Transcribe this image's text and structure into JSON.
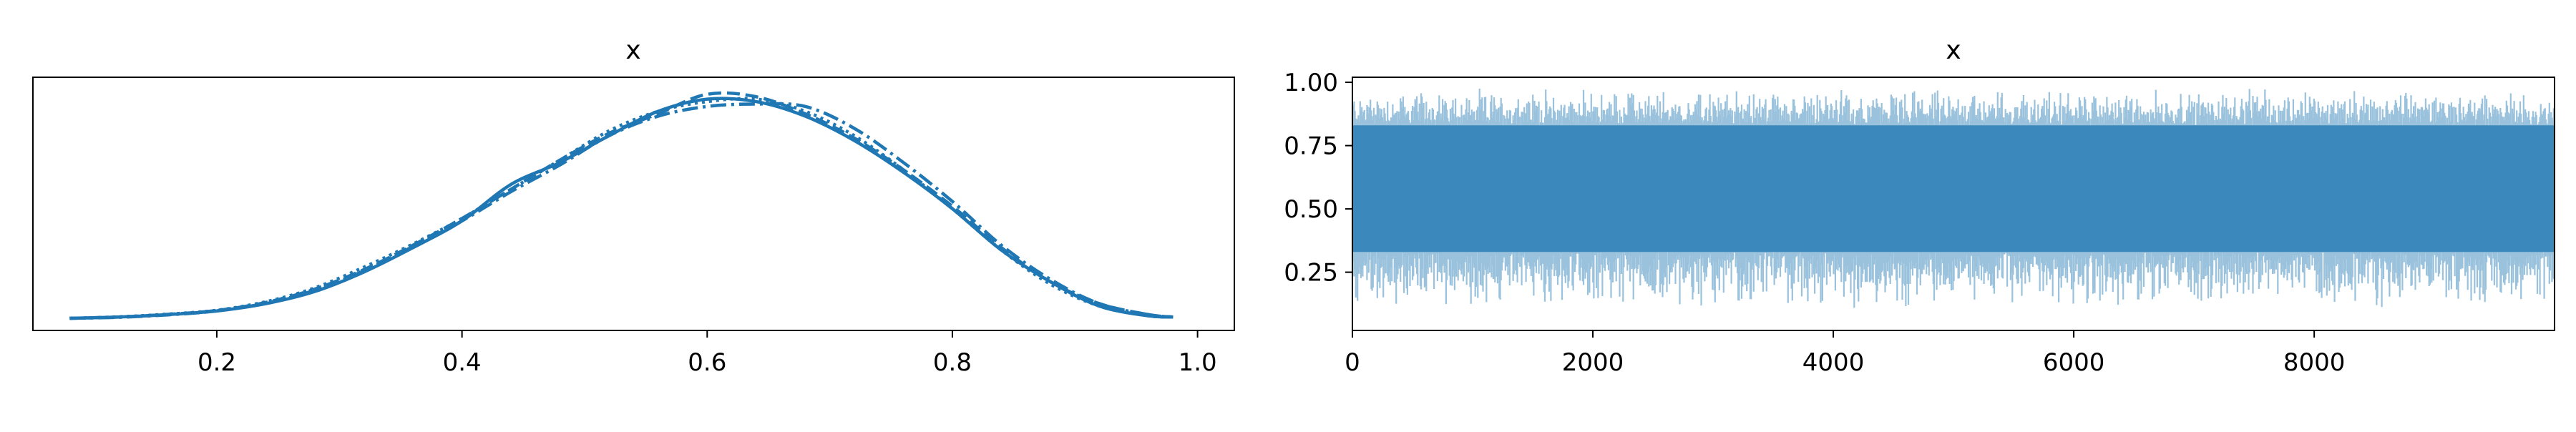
{
  "colors": {
    "line": "#1f77b4",
    "trace": "#1f77b4",
    "axis": "#000000"
  },
  "chart_data": [
    {
      "type": "line",
      "title": "x",
      "xlabel": "",
      "ylabel": "",
      "xlim": [
        0.05,
        1.03
      ],
      "ylim": [
        0,
        1.04
      ],
      "xticks": [
        0.2,
        0.4,
        0.6,
        0.8,
        1.0
      ],
      "xtick_labels": [
        "0.2",
        "0.4",
        "0.6",
        "0.8",
        "1.0"
      ],
      "yticks_visible": false,
      "grid": false,
      "x": [
        0.08,
        0.12,
        0.16,
        0.2,
        0.24,
        0.28,
        0.32,
        0.36,
        0.4,
        0.44,
        0.48,
        0.52,
        0.56,
        0.6,
        0.64,
        0.68,
        0.72,
        0.76,
        0.8,
        0.84,
        0.88,
        0.92,
        0.96,
        0.98
      ],
      "series": [
        {
          "style": "solid",
          "values": [
            0.05,
            0.055,
            0.065,
            0.08,
            0.11,
            0.16,
            0.24,
            0.34,
            0.45,
            0.6,
            0.69,
            0.8,
            0.9,
            0.95,
            0.94,
            0.88,
            0.78,
            0.65,
            0.5,
            0.33,
            0.2,
            0.1,
            0.06,
            0.055
          ]
        },
        {
          "style": "dashed",
          "values": [
            0.05,
            0.055,
            0.066,
            0.082,
            0.115,
            0.17,
            0.25,
            0.35,
            0.46,
            0.58,
            0.7,
            0.81,
            0.89,
            0.97,
            0.96,
            0.89,
            0.79,
            0.66,
            0.51,
            0.34,
            0.2,
            0.11,
            0.065,
            0.055
          ]
        },
        {
          "style": "dashdot",
          "values": [
            0.05,
            0.054,
            0.064,
            0.08,
            0.112,
            0.165,
            0.245,
            0.345,
            0.45,
            0.57,
            0.68,
            0.8,
            0.88,
            0.92,
            0.93,
            0.92,
            0.83,
            0.69,
            0.53,
            0.35,
            0.21,
            0.11,
            0.065,
            0.055
          ]
        },
        {
          "style": "dotted",
          "values": [
            0.05,
            0.056,
            0.067,
            0.083,
            0.118,
            0.175,
            0.26,
            0.355,
            0.46,
            0.58,
            0.7,
            0.82,
            0.9,
            0.94,
            0.95,
            0.9,
            0.8,
            0.66,
            0.5,
            0.33,
            0.19,
            0.1,
            0.06,
            0.055
          ]
        }
      ]
    },
    {
      "type": "line",
      "title": "x",
      "xlabel": "",
      "ylabel": "",
      "xlim": [
        0,
        9999
      ],
      "ylim": [
        0.02,
        1.02
      ],
      "xticks": [
        0,
        2000,
        4000,
        6000,
        8000
      ],
      "xtick_labels": [
        "0",
        "2000",
        "4000",
        "6000",
        "8000"
      ],
      "yticks": [
        0.25,
        0.5,
        0.75,
        1.0
      ],
      "ytick_labels": [
        "0.25",
        "0.50",
        "0.75",
        "1.00"
      ],
      "grid": false,
      "band": {
        "core_low": 0.33,
        "core_high": 0.83,
        "min": 0.1,
        "max": 0.98
      }
    }
  ]
}
